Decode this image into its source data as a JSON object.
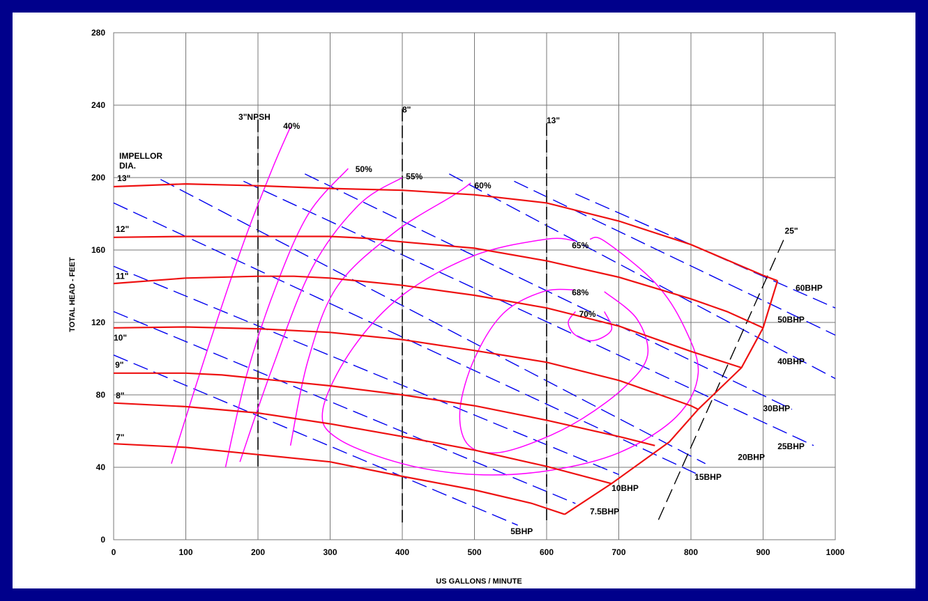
{
  "chart_data": {
    "type": "line",
    "xlabel": "US GALLONS / MINUTE",
    "ylabel": "TOTAL HEAD - FEET",
    "xlim": [
      0,
      1000
    ],
    "ylim": [
      0,
      280
    ],
    "x_ticks": [
      "0",
      "100",
      "200",
      "300",
      "400",
      "500",
      "600",
      "700",
      "800",
      "900",
      "1000"
    ],
    "y_ticks": [
      "0",
      "40",
      "80",
      "120",
      "160",
      "200",
      "240",
      "280"
    ],
    "grid": true,
    "impellor_title": [
      "IMPELLOR",
      "DIA."
    ],
    "colors": {
      "head": "#ee1111",
      "bhp": "#0000ee",
      "efficiency": "#ff00ff",
      "npsh": "#333333",
      "frame": "#00008b"
    },
    "head_curves": [
      {
        "name": "13\"",
        "points": [
          [
            0,
            195
          ],
          [
            100,
            196.5
          ],
          [
            200,
            195.5
          ],
          [
            300,
            194
          ],
          [
            400,
            193
          ],
          [
            500,
            190.5
          ],
          [
            600,
            186
          ],
          [
            700,
            176
          ],
          [
            800,
            163
          ],
          [
            900,
            146
          ],
          [
            920,
            143
          ]
        ]
      },
      {
        "name": "12\"",
        "points": [
          [
            0,
            167
          ],
          [
            100,
            167.5
          ],
          [
            200,
            167.5
          ],
          [
            300,
            167.5
          ],
          [
            350,
            166.5
          ],
          [
            400,
            164.5
          ],
          [
            500,
            161
          ],
          [
            600,
            154
          ],
          [
            700,
            145
          ],
          [
            800,
            133
          ],
          [
            850,
            126
          ],
          [
            900,
            117
          ]
        ]
      },
      {
        "name": "11\"",
        "points": [
          [
            0,
            141.5
          ],
          [
            100,
            144.5
          ],
          [
            200,
            145.5
          ],
          [
            250,
            145.5
          ],
          [
            300,
            144.5
          ],
          [
            400,
            140.5
          ],
          [
            500,
            135
          ],
          [
            600,
            128
          ],
          [
            700,
            118
          ],
          [
            800,
            104
          ],
          [
            870,
            95
          ]
        ]
      },
      {
        "name": "10\"",
        "points": [
          [
            0,
            117
          ],
          [
            100,
            117.5
          ],
          [
            200,
            116.5
          ],
          [
            300,
            114.5
          ],
          [
            400,
            110.5
          ],
          [
            500,
            104.5
          ],
          [
            600,
            98
          ],
          [
            700,
            88
          ],
          [
            800,
            74
          ],
          [
            810,
            72
          ]
        ]
      },
      {
        "name": "9\"",
        "points": [
          [
            0,
            92
          ],
          [
            100,
            92
          ],
          [
            150,
            91
          ],
          [
            200,
            89
          ],
          [
            300,
            85
          ],
          [
            400,
            80
          ],
          [
            500,
            74
          ],
          [
            600,
            66
          ],
          [
            700,
            57
          ],
          [
            750,
            52
          ]
        ]
      },
      {
        "name": "8\"",
        "points": [
          [
            0,
            75.5
          ],
          [
            100,
            73.5
          ],
          [
            200,
            70
          ],
          [
            300,
            64
          ],
          [
            400,
            57
          ],
          [
            500,
            49.5
          ],
          [
            600,
            40.5
          ],
          [
            690,
            31
          ]
        ]
      },
      {
        "name": "7\"",
        "points": [
          [
            0,
            53
          ],
          [
            100,
            51
          ],
          [
            200,
            47
          ],
          [
            300,
            43
          ],
          [
            400,
            35
          ],
          [
            500,
            27.5
          ],
          [
            580,
            20
          ],
          [
            625,
            14
          ]
        ]
      }
    ],
    "max_flow_curve": {
      "points": [
        [
          920,
          143
        ],
        [
          910,
          130
        ],
        [
          900,
          117
        ],
        [
          870,
          95
        ],
        [
          810,
          72
        ],
        [
          770,
          54
        ],
        [
          690,
          31
        ],
        [
          625,
          14
        ]
      ]
    },
    "bhp_lines": [
      {
        "name": "60BHP",
        "points": [
          [
            640,
            191
          ],
          [
            1000,
            128
          ]
        ]
      },
      {
        "name": "50BHP",
        "points": [
          [
            555,
            198
          ],
          [
            1000,
            113
          ]
        ]
      },
      {
        "name": "40BHP",
        "points": [
          [
            465,
            202
          ],
          [
            1000,
            89
          ]
        ]
      },
      {
        "name": "30BHP",
        "points": [
          [
            265,
            202
          ],
          [
            940,
            72
          ]
        ]
      },
      {
        "name": "25BHP",
        "points": [
          [
            180,
            198
          ],
          [
            970,
            52
          ]
        ]
      },
      {
        "name": "20BHP",
        "points": [
          [
            65,
            199
          ],
          [
            820,
            42
          ]
        ]
      },
      {
        "name": "15BHP",
        "points": [
          [
            0,
            186
          ],
          [
            810,
            36
          ]
        ]
      },
      {
        "name": "10BHP",
        "points": [
          [
            0,
            151
          ],
          [
            700,
            36
          ]
        ]
      },
      {
        "name": "7.5BHP",
        "points": [
          [
            0,
            126
          ],
          [
            640,
            20
          ]
        ]
      },
      {
        "name": "5BHP",
        "points": [
          [
            0,
            102
          ],
          [
            560,
            8
          ]
        ]
      }
    ],
    "efficiency_curves": [
      {
        "name": "40%",
        "points": [
          [
            80,
            42
          ],
          [
            130,
            105
          ],
          [
            180,
            164
          ],
          [
            220,
            205
          ],
          [
            245,
            228
          ]
        ]
      },
      {
        "name": "50%",
        "points": [
          [
            155,
            40
          ],
          [
            185,
            92
          ],
          [
            225,
            140
          ],
          [
            270,
            180
          ],
          [
            325,
            205
          ]
        ]
      },
      {
        "name": "55%",
        "points": [
          [
            175,
            43
          ],
          [
            220,
            95
          ],
          [
            275,
            150
          ],
          [
            340,
            185
          ],
          [
            400,
            200
          ]
        ]
      },
      {
        "name": "60%",
        "points": [
          [
            245,
            52
          ],
          [
            270,
            100
          ],
          [
            310,
            140
          ],
          [
            390,
            170
          ],
          [
            470,
            190
          ],
          [
            495,
            197
          ]
        ]
      },
      {
        "name": "65%",
        "points": [
          [
            640,
            165
          ],
          [
            600,
            166
          ],
          [
            500,
            157
          ],
          [
            400,
            135
          ],
          [
            330,
            105
          ],
          [
            290,
            72
          ],
          [
            310,
            56
          ],
          [
            400,
            42
          ],
          [
            500,
            36
          ],
          [
            600,
            38
          ],
          [
            700,
            48
          ],
          [
            780,
            68
          ],
          [
            810,
            92
          ],
          [
            790,
            118
          ],
          [
            750,
            142
          ],
          [
            680,
            165
          ],
          [
            660,
            166
          ]
        ]
      },
      {
        "name": "68%",
        "points": [
          [
            640,
            138
          ],
          [
            595,
            137
          ],
          [
            540,
            125
          ],
          [
            500,
            100
          ],
          [
            480,
            72
          ],
          [
            490,
            53
          ],
          [
            530,
            48
          ],
          [
            590,
            55
          ],
          [
            650,
            67
          ],
          [
            710,
            85
          ],
          [
            740,
            102
          ],
          [
            725,
            122
          ],
          [
            680,
            137
          ]
        ]
      },
      {
        "name": "70%",
        "points": [
          [
            640,
            126
          ],
          [
            630,
            120
          ],
          [
            640,
            113
          ],
          [
            665,
            110
          ],
          [
            690,
            116
          ],
          [
            680,
            126
          ]
        ]
      }
    ],
    "npsh_lines": [
      {
        "name": "3\"NPSH",
        "x": 200,
        "y_top": 232,
        "y_bottom": 40
      },
      {
        "name": "8\"",
        "x": 400,
        "y_top": 238,
        "y_bottom": 8
      },
      {
        "name": "13\"",
        "x": 600,
        "y_top": 230,
        "y_bottom": 10
      }
    ],
    "npsh_25": {
      "name": "25\"",
      "points": [
        [
          755,
          11
        ],
        [
          930,
          167
        ]
      ]
    }
  }
}
